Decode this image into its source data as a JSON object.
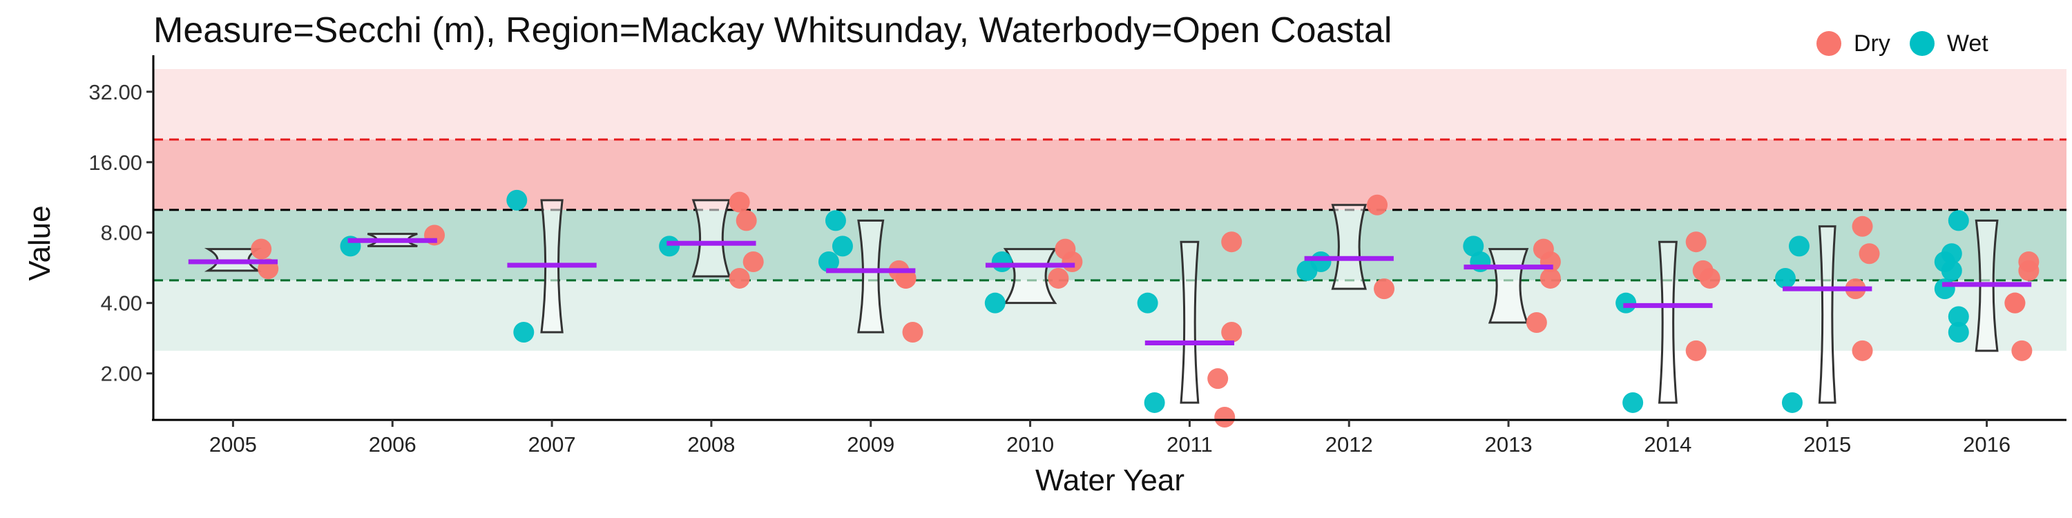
{
  "chart_data": {
    "type": "scatter",
    "title": "Measure=Secchi (m), Region=Mackay Whitsunday, Waterbody=Open Coastal",
    "xlabel": "Water Year",
    "ylabel": "Value",
    "y_scale": "log2",
    "ylim": [
      1.3,
      40
    ],
    "yticks": [
      2,
      4,
      8,
      16,
      32
    ],
    "ytick_labels": [
      "2.00",
      "4.00",
      "8.00",
      "16.00",
      "32.00"
    ],
    "categories": [
      "2005",
      "2006",
      "2007",
      "2008",
      "2009",
      "2010",
      "2011",
      "2012",
      "2013",
      "2014",
      "2015",
      "2016"
    ],
    "legend": {
      "position": "top-right",
      "entries": [
        "Dry",
        "Wet"
      ]
    },
    "colors": {
      "Dry": "#F8766D",
      "Wet": "#00BFC4",
      "median_line": "#A020F0",
      "median_line_light": "#D490E8",
      "guideline": "#000000",
      "upper_bound": "#E41A1C",
      "lower_bound": "#006D2C",
      "band_top": "#FCE6E6",
      "band_mid": "#F9BDBD",
      "band_good": "#B9DDD1",
      "band_low": "#E3F1EC"
    },
    "bands": [
      {
        "from": 20,
        "to": 40,
        "color": "#FCE6E6"
      },
      {
        "from": 10,
        "to": 20,
        "color": "#F9BDBD"
      },
      {
        "from": 5,
        "to": 10,
        "color": "#B9DDD1"
      },
      {
        "from": 2.5,
        "to": 5,
        "color": "#E3F1EC"
      }
    ],
    "reference_lines": [
      {
        "value": 20,
        "color": "#E41A1C",
        "style": "dashed"
      },
      {
        "value": 10,
        "color": "#000000",
        "style": "dashed"
      },
      {
        "value": 5,
        "color": "#006D2C",
        "style": "dashed"
      }
    ],
    "series": [
      {
        "name": "Dry",
        "points": [
          {
            "x": "2005",
            "y": 6.8
          },
          {
            "x": "2005",
            "y": 5.6
          },
          {
            "x": "2006",
            "y": 7.8
          },
          {
            "x": "2008",
            "y": 10.8
          },
          {
            "x": "2008",
            "y": 9.0
          },
          {
            "x": "2008",
            "y": 6.0
          },
          {
            "x": "2008",
            "y": 5.1
          },
          {
            "x": "2009",
            "y": 5.1
          },
          {
            "x": "2009",
            "y": 3.0
          },
          {
            "x": "2009",
            "y": 5.5
          },
          {
            "x": "2009",
            "y": 5.1
          },
          {
            "x": "2010",
            "y": 6.0
          },
          {
            "x": "2010",
            "y": 5.1
          },
          {
            "x": "2010",
            "y": 6.8
          },
          {
            "x": "2011",
            "y": 3.0
          },
          {
            "x": "2011",
            "y": 1.9
          },
          {
            "x": "2011",
            "y": 1.3
          },
          {
            "x": "2011",
            "y": 7.3
          },
          {
            "x": "2012",
            "y": 10.5
          },
          {
            "x": "2012",
            "y": 4.6
          },
          {
            "x": "2013",
            "y": 6.0
          },
          {
            "x": "2013",
            "y": 3.3
          },
          {
            "x": "2013",
            "y": 6.8
          },
          {
            "x": "2013",
            "y": 5.1
          },
          {
            "x": "2014",
            "y": 2.5
          },
          {
            "x": "2014",
            "y": 5.5
          },
          {
            "x": "2014",
            "y": 5.1
          },
          {
            "x": "2014",
            "y": 7.3
          },
          {
            "x": "2015",
            "y": 8.5
          },
          {
            "x": "2015",
            "y": 6.5
          },
          {
            "x": "2015",
            "y": 4.6
          },
          {
            "x": "2015",
            "y": 2.5
          },
          {
            "x": "2016",
            "y": 5.5
          },
          {
            "x": "2016",
            "y": 4.0
          },
          {
            "x": "2016",
            "y": 2.5
          },
          {
            "x": "2016",
            "y": 6.0
          },
          {
            "x": "2016",
            "y": 4.0
          }
        ]
      },
      {
        "name": "Wet",
        "points": [
          {
            "x": "2006",
            "y": 7.0
          },
          {
            "x": "2007",
            "y": 11.0
          },
          {
            "x": "2007",
            "y": 3.0
          },
          {
            "x": "2008",
            "y": 7.0
          },
          {
            "x": "2009",
            "y": 9.0
          },
          {
            "x": "2009",
            "y": 7.0
          },
          {
            "x": "2009",
            "y": 6.0
          },
          {
            "x": "2010",
            "y": 4.0
          },
          {
            "x": "2010",
            "y": 6.0
          },
          {
            "x": "2011",
            "y": 4.0
          },
          {
            "x": "2011",
            "y": 1.5
          },
          {
            "x": "2012",
            "y": 6.0
          },
          {
            "x": "2012",
            "y": 5.5
          },
          {
            "x": "2013",
            "y": 7.0
          },
          {
            "x": "2013",
            "y": 6.0
          },
          {
            "x": "2014",
            "y": 4.0
          },
          {
            "x": "2014",
            "y": 1.5
          },
          {
            "x": "2015",
            "y": 7.0
          },
          {
            "x": "2015",
            "y": 5.1
          },
          {
            "x": "2015",
            "y": 1.5
          },
          {
            "x": "2016",
            "y": 9.0
          },
          {
            "x": "2016",
            "y": 6.0
          },
          {
            "x": "2016",
            "y": 5.5
          },
          {
            "x": "2016",
            "y": 3.5
          },
          {
            "x": "2016",
            "y": 4.6
          },
          {
            "x": "2016",
            "y": 6.5
          },
          {
            "x": "2016",
            "y": 3.0
          }
        ]
      }
    ],
    "medians": [
      {
        "x": "2005",
        "dry": 6.0,
        "wet": null
      },
      {
        "x": "2006",
        "dry": 7.4,
        "wet": null
      },
      {
        "x": "2007",
        "dry": 5.8,
        "wet": null
      },
      {
        "x": "2008",
        "dry": 7.2,
        "wet": null
      },
      {
        "x": "2009",
        "dry": 5.5,
        "wet": null
      },
      {
        "x": "2010",
        "dry": 5.8,
        "wet": null
      },
      {
        "x": "2011",
        "dry": 2.7,
        "wet": null
      },
      {
        "x": "2012",
        "dry": 6.2,
        "wet": null
      },
      {
        "x": "2013",
        "dry": 5.7,
        "wet": null
      },
      {
        "x": "2014",
        "dry": 3.9,
        "wet": null
      },
      {
        "x": "2015",
        "dry": 4.6,
        "wet": null
      },
      {
        "x": "2016",
        "dry": 4.8,
        "wet": null
      }
    ],
    "violins": [
      {
        "x": "2005",
        "min": 5.5,
        "max": 6.8
      },
      {
        "x": "2006",
        "min": 7.0,
        "max": 7.9
      },
      {
        "x": "2007",
        "min": 3.0,
        "max": 11.0
      },
      {
        "x": "2008",
        "min": 5.2,
        "max": 11.0
      },
      {
        "x": "2009",
        "min": 3.0,
        "max": 9.0
      },
      {
        "x": "2010",
        "min": 4.0,
        "max": 6.8
      },
      {
        "x": "2011",
        "min": 1.5,
        "max": 7.3
      },
      {
        "x": "2012",
        "min": 4.6,
        "max": 10.5
      },
      {
        "x": "2013",
        "min": 3.3,
        "max": 6.8
      },
      {
        "x": "2014",
        "min": 1.5,
        "max": 7.3
      },
      {
        "x": "2015",
        "min": 1.5,
        "max": 8.5
      },
      {
        "x": "2016",
        "min": 2.5,
        "max": 9.0
      }
    ]
  }
}
